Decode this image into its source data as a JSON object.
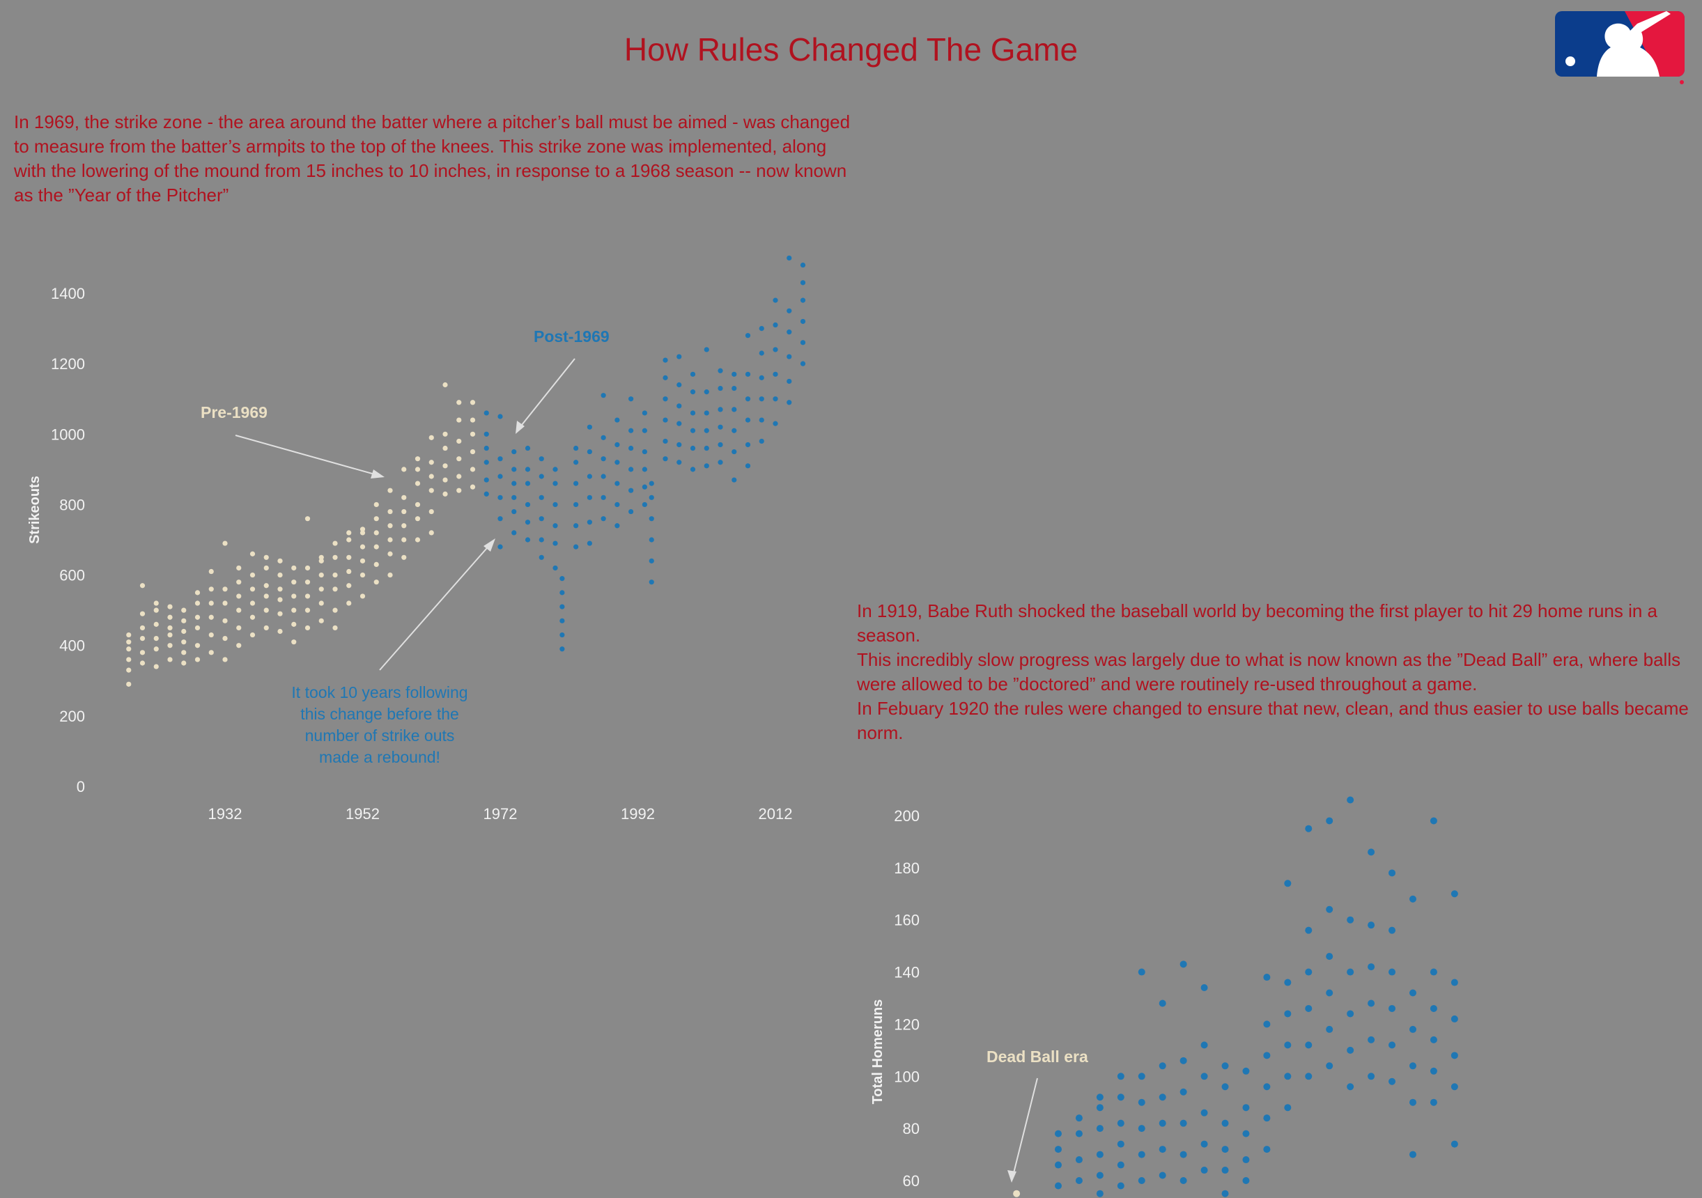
{
  "title": "How Rules Changed The Game",
  "paragraph1": "In 1969, the strike zone - the area around the batter where a pitcher’s ball must be aimed - was changed to measure from the batter’s armpits to the top of the knees. This strike zone was implemented, along with the lowering of the mound from 15 inches to 10 inches, in response to a 1968 season -- now known as the ”Year of the Pitcher”",
  "paragraph2": [
    "In 1919, Babe Ruth shocked the baseball world by becoming the first player to hit 29 home runs in a season.",
    "This incredibly slow progress was largely due to what is now known as the ”Dead Ball” era, where balls were allowed to be ”doctored” and were routinely re-used throughout a game.",
    "In Febuary 1920 the rules were changed to ensure that new, clean, and thus easier to use balls became norm."
  ],
  "logo": {
    "text": "MLB",
    "colors": {
      "left": "#0b3d8c",
      "right": "#e4173e"
    }
  },
  "colors": {
    "text_red": "#b0121f",
    "pre": "#ebe0c4",
    "post": "#1f77b4",
    "background": "#898989"
  },
  "chart_data": [
    {
      "type": "scatter",
      "ylabel": "Strikeouts",
      "xlabel": "",
      "xticks": [
        "1932",
        "1952",
        "1972",
        "1992",
        "2012"
      ],
      "yticks": [
        "0",
        "200",
        "400",
        "600",
        "800",
        "1000",
        "1200",
        "1400"
      ],
      "ylim": [
        0,
        1500
      ],
      "xlim": [
        1904,
        2018
      ],
      "grid": false,
      "annotations": {
        "pre": "Pre-1969",
        "post": "Post-1969",
        "note": [
          "It took 10 years following",
          "this change before the",
          "number of strike outs",
          "made a rebound!"
        ]
      },
      "series": [
        {
          "name": "Pre-1969",
          "color": "#ebe0c4",
          "points": [
            [
              1918,
              [
                290,
                330,
                360,
                390,
                410,
                430
              ]
            ],
            [
              1920,
              [
                350,
                380,
                420,
                450,
                490,
                570
              ]
            ],
            [
              1922,
              [
                340,
                390,
                420,
                460,
                500,
                520
              ]
            ],
            [
              1924,
              [
                360,
                400,
                430,
                450,
                480,
                510
              ]
            ],
            [
              1926,
              [
                350,
                380,
                410,
                440,
                470,
                500
              ]
            ],
            [
              1928,
              [
                360,
                400,
                450,
                480,
                520,
                550
              ]
            ],
            [
              1930,
              [
                380,
                430,
                480,
                520,
                560,
                610
              ]
            ],
            [
              1932,
              [
                360,
                420,
                470,
                520,
                560,
                690
              ]
            ],
            [
              1934,
              [
                400,
                450,
                500,
                540,
                580,
                620
              ]
            ],
            [
              1936,
              [
                430,
                480,
                520,
                560,
                600,
                660
              ]
            ],
            [
              1938,
              [
                450,
                500,
                540,
                570,
                620,
                650
              ]
            ],
            [
              1940,
              [
                440,
                490,
                530,
                560,
                600,
                640
              ]
            ],
            [
              1942,
              [
                410,
                460,
                500,
                540,
                580,
                620
              ]
            ],
            [
              1944,
              [
                450,
                500,
                540,
                580,
                620,
                760
              ]
            ],
            [
              1946,
              [
                470,
                520,
                560,
                600,
                640,
                650
              ]
            ],
            [
              1948,
              [
                450,
                500,
                560,
                600,
                650,
                690
              ]
            ],
            [
              1950,
              [
                520,
                570,
                610,
                650,
                700,
                720
              ]
            ],
            [
              1952,
              [
                540,
                600,
                640,
                680,
                720,
                730
              ]
            ],
            [
              1954,
              [
                580,
                630,
                680,
                720,
                760,
                800
              ]
            ],
            [
              1956,
              [
                600,
                660,
                700,
                740,
                780,
                840
              ]
            ],
            [
              1958,
              [
                650,
                700,
                740,
                780,
                820,
                900
              ]
            ],
            [
              1960,
              [
                700,
                760,
                800,
                860,
                900,
                930
              ]
            ],
            [
              1962,
              [
                720,
                780,
                840,
                880,
                920,
                990
              ]
            ],
            [
              1964,
              [
                830,
                870,
                910,
                960,
                1000,
                1140
              ]
            ],
            [
              1966,
              [
                840,
                880,
                930,
                980,
                1040,
                1090
              ]
            ],
            [
              1968,
              [
                850,
                900,
                950,
                1000,
                1040,
                1090
              ]
            ]
          ]
        },
        {
          "name": "Post-1969",
          "color": "#1f77b4",
          "points": [
            [
              1970,
              [
                830,
                870,
                920,
                960,
                1000,
                1060
              ]
            ],
            [
              1972,
              [
                680,
                760,
                820,
                880,
                930,
                1050
              ]
            ],
            [
              1974,
              [
                720,
                780,
                820,
                860,
                900,
                950
              ]
            ],
            [
              1976,
              [
                700,
                750,
                800,
                860,
                900,
                960
              ]
            ],
            [
              1978,
              [
                650,
                700,
                760,
                820,
                880,
                930
              ]
            ],
            [
              1980,
              [
                620,
                690,
                740,
                800,
                860,
                900
              ]
            ],
            [
              1981,
              [
                390,
                430,
                470,
                510,
                550,
                590
              ]
            ],
            [
              1983,
              [
                680,
                740,
                800,
                860,
                920,
                960
              ]
            ],
            [
              1985,
              [
                690,
                750,
                820,
                880,
                950,
                1020
              ]
            ],
            [
              1987,
              [
                760,
                820,
                880,
                930,
                990,
                1110
              ]
            ],
            [
              1989,
              [
                740,
                800,
                860,
                920,
                970,
                1040
              ]
            ],
            [
              1991,
              [
                780,
                840,
                900,
                960,
                1010,
                1100
              ]
            ],
            [
              1993,
              [
                800,
                850,
                900,
                950,
                1010,
                1060
              ]
            ],
            [
              1994,
              [
                580,
                640,
                700,
                760,
                820,
                860
              ]
            ],
            [
              1996,
              [
                930,
                980,
                1040,
                1100,
                1160,
                1210
              ]
            ],
            [
              1998,
              [
                920,
                970,
                1030,
                1080,
                1140,
                1220
              ]
            ],
            [
              2000,
              [
                900,
                960,
                1010,
                1060,
                1120,
                1170
              ]
            ],
            [
              2002,
              [
                910,
                960,
                1010,
                1060,
                1120,
                1240
              ]
            ],
            [
              2004,
              [
                920,
                970,
                1020,
                1070,
                1130,
                1180
              ]
            ],
            [
              2006,
              [
                870,
                950,
                1010,
                1070,
                1130,
                1170
              ]
            ],
            [
              2008,
              [
                910,
                970,
                1040,
                1100,
                1170,
                1280
              ]
            ],
            [
              2010,
              [
                980,
                1040,
                1100,
                1160,
                1230,
                1300
              ]
            ],
            [
              2012,
              [
                1030,
                1100,
                1170,
                1240,
                1310,
                1380
              ]
            ],
            [
              2014,
              [
                1090,
                1150,
                1220,
                1290,
                1350,
                1500
              ]
            ],
            [
              2016,
              [
                1200,
                1260,
                1320,
                1380,
                1430,
                1480
              ]
            ]
          ]
        }
      ]
    },
    {
      "type": "scatter",
      "ylabel": "Total Homeruns",
      "xlabel": "",
      "yticks": [
        "60",
        "80",
        "100",
        "120",
        "140",
        "160",
        "180",
        "200"
      ],
      "ylim": [
        50,
        210
      ],
      "grid": false,
      "annotations": {
        "dead_ball": "Dead Ball era"
      },
      "series": [
        {
          "name": "Dead Ball era",
          "color": "#ebe0c4",
          "points": [
            [
              1970,
              [
                55
              ]
            ]
          ]
        },
        {
          "color": "#1f77b4",
          "points": [
            [
              1974,
              [
                50,
                58,
                66,
                72,
                78
              ]
            ],
            [
              1976,
              [
                52,
                60,
                68,
                78,
                84
              ]
            ],
            [
              1978,
              [
                55,
                62,
                70,
                80,
                88,
                92
              ]
            ],
            [
              1980,
              [
                58,
                66,
                74,
                82,
                92,
                100
              ]
            ],
            [
              1982,
              [
                60,
                70,
                80,
                90,
                100,
                140
              ]
            ],
            [
              1984,
              [
                62,
                72,
                82,
                92,
                104,
                128
              ]
            ],
            [
              1986,
              [
                60,
                70,
                82,
                94,
                106,
                143
              ]
            ],
            [
              1988,
              [
                64,
                74,
                86,
                100,
                112,
                134
              ]
            ],
            [
              1990,
              [
                55,
                64,
                72,
                82,
                96,
                104
              ]
            ],
            [
              1992,
              [
                52,
                60,
                68,
                78,
                88,
                102
              ]
            ],
            [
              1994,
              [
                72,
                84,
                96,
                108,
                120,
                138
              ]
            ],
            [
              1996,
              [
                88,
                100,
                112,
                124,
                136,
                174
              ]
            ],
            [
              1998,
              [
                100,
                112,
                126,
                140,
                156,
                195
              ]
            ],
            [
              2000,
              [
                104,
                118,
                132,
                146,
                164,
                198
              ]
            ],
            [
              2002,
              [
                96,
                110,
                124,
                140,
                160,
                206
              ]
            ],
            [
              2004,
              [
                100,
                114,
                128,
                142,
                158,
                186
              ]
            ],
            [
              2006,
              [
                98,
                112,
                126,
                140,
                156,
                178
              ]
            ],
            [
              2008,
              [
                70,
                90,
                104,
                118,
                132,
                168
              ]
            ],
            [
              2010,
              [
                90,
                102,
                114,
                126,
                140,
                198
              ]
            ],
            [
              2012,
              [
                74,
                96,
                108,
                122,
                136,
                170
              ]
            ]
          ]
        }
      ]
    }
  ]
}
